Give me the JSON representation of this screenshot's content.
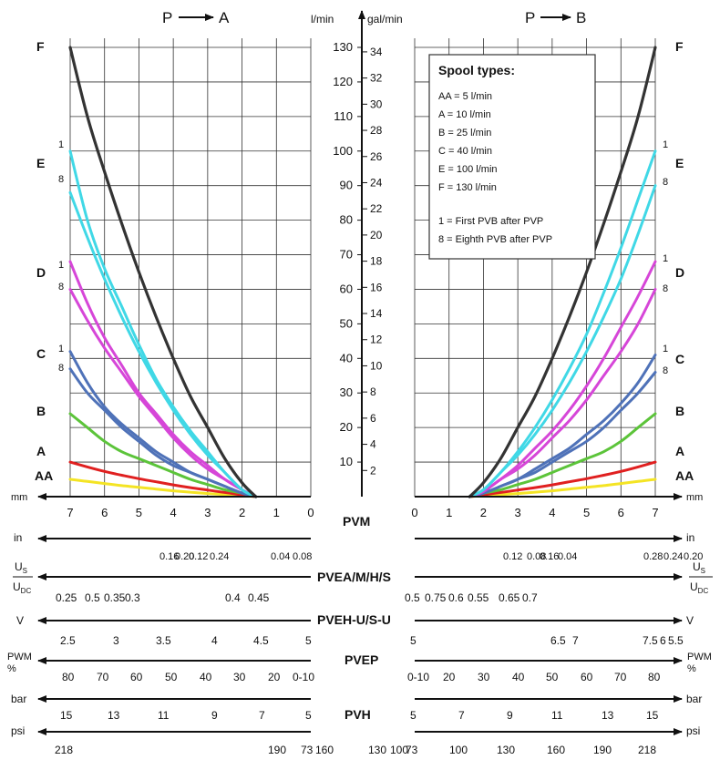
{
  "chart_data": {
    "type": "line",
    "left_panel": {
      "header_from": "P",
      "header_to": "A",
      "x_unit": "mm",
      "x_ticks": [
        "7",
        "6",
        "5",
        "4",
        "3",
        "2",
        "1",
        "0"
      ],
      "series": [
        {
          "name": "F",
          "color": "#333333",
          "x": [
            7.0,
            6.5,
            6.0,
            5.5,
            5.0,
            4.5,
            4.0,
            3.5,
            3.0,
            2.5,
            2.0,
            1.6
          ],
          "y": [
            130,
            110,
            94,
            79,
            65,
            52,
            40,
            29,
            20,
            11,
            4,
            0
          ]
        },
        {
          "name": "E1",
          "color": "#40d8e6",
          "x": [
            7.0,
            6.5,
            6.0,
            5.5,
            5.0,
            4.5,
            4.0,
            3.5,
            3.0,
            2.5,
            2.0,
            1.6
          ],
          "y": [
            100,
            80,
            66,
            55,
            44,
            34,
            26,
            19,
            13,
            7,
            2,
            0
          ]
        },
        {
          "name": "E8",
          "color": "#40d8e6",
          "x": [
            7.0,
            6.5,
            6.0,
            5.5,
            5.0,
            4.5,
            4.0,
            3.5,
            3.0,
            2.5,
            2.0,
            1.6
          ],
          "y": [
            88,
            75,
            63,
            52,
            42,
            33,
            25,
            18,
            12,
            7,
            2,
            0
          ]
        },
        {
          "name": "D1",
          "color": "#d646d8",
          "x": [
            7.0,
            6.5,
            6.0,
            5.5,
            5.0,
            4.5,
            4.0,
            3.5,
            3.0,
            2.5,
            2.0,
            1.6
          ],
          "y": [
            68,
            56,
            46,
            38,
            30,
            24,
            18,
            13,
            9,
            5,
            2,
            0
          ]
        },
        {
          "name": "D8",
          "color": "#d646d8",
          "x": [
            7.0,
            6.5,
            6.0,
            5.5,
            5.0,
            4.5,
            4.0,
            3.5,
            3.0,
            2.5,
            2.0,
            1.6
          ],
          "y": [
            60,
            51,
            43,
            36,
            29,
            23,
            17,
            12,
            8,
            5,
            2,
            0
          ]
        },
        {
          "name": "C1",
          "color": "#4f72b8",
          "x": [
            7.0,
            6.5,
            6.0,
            5.5,
            5.0,
            4.5,
            4.0,
            3.5,
            3.0,
            2.5,
            2.0,
            1.6
          ],
          "y": [
            42,
            33,
            26,
            21,
            17,
            13,
            10,
            7,
            5,
            3,
            1,
            0
          ]
        },
        {
          "name": "C8",
          "color": "#4f72b8",
          "x": [
            7.0,
            6.5,
            6.0,
            5.5,
            5.0,
            4.5,
            4.0,
            3.5,
            3.0,
            2.5,
            2.0,
            1.6
          ],
          "y": [
            37,
            30,
            25,
            20,
            16,
            12,
            9,
            7,
            5,
            3,
            1,
            0
          ]
        },
        {
          "name": "B",
          "color": "#5cc43a",
          "x": [
            7.0,
            6.5,
            6.0,
            5.5,
            5.0,
            4.5,
            4.0,
            3.5,
            3.0,
            2.5,
            2.0,
            1.6
          ],
          "y": [
            24,
            20,
            16,
            13,
            11,
            9,
            7,
            5,
            3.5,
            2,
            1,
            0
          ]
        },
        {
          "name": "A",
          "color": "#e02020",
          "x": [
            7.0,
            6.5,
            6.0,
            5.5,
            5.0,
            4.5,
            4.0,
            3.5,
            3.0,
            2.5,
            2.0,
            1.6
          ],
          "y": [
            10,
            8.6,
            7.3,
            6.2,
            5.2,
            4.3,
            3.4,
            2.6,
            1.9,
            1.2,
            0.5,
            0
          ]
        },
        {
          "name": "AA",
          "color": "#f4e424",
          "x": [
            7.0,
            6.5,
            6.0,
            5.5,
            5.0,
            4.5,
            4.0,
            3.5,
            3.0,
            2.5,
            2.0,
            1.6
          ],
          "y": [
            5,
            4.4,
            3.8,
            3.2,
            2.7,
            2.2,
            1.7,
            1.3,
            0.9,
            0.6,
            0.3,
            0
          ]
        }
      ]
    },
    "right_panel": {
      "header_from": "P",
      "header_to": "B",
      "x_unit": "mm",
      "x_ticks": [
        "0",
        "1",
        "2",
        "3",
        "4",
        "5",
        "6",
        "7"
      ],
      "series": [
        {
          "name": "F",
          "color": "#333333",
          "x": [
            1.6,
            2.0,
            2.5,
            3.0,
            3.5,
            4.0,
            4.5,
            5.0,
            5.5,
            6.0,
            6.5,
            7.0
          ],
          "y": [
            0,
            4,
            11,
            20,
            29,
            40,
            52,
            65,
            79,
            94,
            110,
            130
          ]
        },
        {
          "name": "E1",
          "color": "#40d8e6",
          "x": [
            1.6,
            2.0,
            2.5,
            3.0,
            3.5,
            4.0,
            4.5,
            5.0,
            5.5,
            6.0,
            6.5,
            7.0
          ],
          "y": [
            0,
            2,
            7,
            13,
            20,
            28,
            37,
            47,
            59,
            72,
            86,
            100
          ]
        },
        {
          "name": "E8",
          "color": "#40d8e6",
          "x": [
            1.6,
            2.0,
            2.5,
            3.0,
            3.5,
            4.0,
            4.5,
            5.0,
            5.5,
            6.0,
            6.5,
            7.0
          ],
          "y": [
            0,
            2,
            7,
            12,
            18,
            25,
            33,
            42,
            52,
            63,
            76,
            90
          ]
        },
        {
          "name": "D1",
          "color": "#d646d8",
          "x": [
            1.6,
            2.0,
            2.5,
            3.0,
            3.5,
            4.0,
            4.5,
            5.0,
            5.5,
            6.0,
            6.5,
            7.0
          ],
          "y": [
            0,
            1.5,
            5,
            9,
            14,
            19,
            25,
            32,
            40,
            49,
            58,
            68
          ]
        },
        {
          "name": "D8",
          "color": "#d646d8",
          "x": [
            1.6,
            2.0,
            2.5,
            3.0,
            3.5,
            4.0,
            4.5,
            5.0,
            5.5,
            6.0,
            6.5,
            7.0
          ],
          "y": [
            0,
            1.5,
            5,
            8,
            12,
            17,
            22,
            28,
            35,
            42,
            50,
            60
          ]
        },
        {
          "name": "C1",
          "color": "#4f72b8",
          "x": [
            1.6,
            2.0,
            2.5,
            3.0,
            3.5,
            4.0,
            4.5,
            5.0,
            5.5,
            6.0,
            6.5,
            7.0
          ],
          "y": [
            0,
            1,
            3,
            5,
            8,
            11,
            14,
            18,
            22,
            27,
            33,
            41
          ]
        },
        {
          "name": "C8",
          "color": "#4f72b8",
          "x": [
            1.6,
            2.0,
            2.5,
            3.0,
            3.5,
            4.0,
            4.5,
            5.0,
            5.5,
            6.0,
            6.5,
            7.0
          ],
          "y": [
            0,
            1,
            3,
            5,
            7,
            10,
            13,
            16,
            20,
            25,
            30,
            36
          ]
        },
        {
          "name": "B",
          "color": "#5cc43a",
          "x": [
            1.6,
            2.0,
            2.5,
            3.0,
            3.5,
            4.0,
            4.5,
            5.0,
            5.5,
            6.0,
            6.5,
            7.0
          ],
          "y": [
            0,
            1,
            2,
            3.5,
            5,
            7,
            9,
            11,
            13,
            16,
            20,
            24
          ]
        },
        {
          "name": "A",
          "color": "#e02020",
          "x": [
            1.6,
            2.0,
            2.5,
            3.0,
            3.5,
            4.0,
            4.5,
            5.0,
            5.5,
            6.0,
            6.5,
            7.0
          ],
          "y": [
            0,
            0.5,
            1.2,
            1.9,
            2.6,
            3.4,
            4.3,
            5.2,
            6.2,
            7.3,
            8.6,
            10
          ]
        },
        {
          "name": "AA",
          "color": "#f4e424",
          "x": [
            1.6,
            2.0,
            2.5,
            3.0,
            3.5,
            4.0,
            4.5,
            5.0,
            5.5,
            6.0,
            6.5,
            7.0
          ],
          "y": [
            0,
            0.3,
            0.6,
            0.9,
            1.3,
            1.7,
            2.2,
            2.7,
            3.2,
            3.8,
            4.4,
            5
          ]
        }
      ]
    },
    "y_axis": {
      "unit_left": "l/min",
      "unit_right": "gal/min",
      "ylim": [
        0,
        130
      ],
      "lmin_ticks": [
        "10",
        "20",
        "30",
        "40",
        "50",
        "60",
        "70",
        "80",
        "90",
        "100",
        "110",
        "120",
        "130"
      ],
      "galmin_ticks": [
        "2",
        "4",
        "6",
        "8",
        "10",
        "12",
        "14",
        "16",
        "18",
        "20",
        "22",
        "24",
        "26",
        "28",
        "30",
        "32",
        "34"
      ]
    },
    "curve_labels": {
      "letters": [
        "F",
        "E",
        "D",
        "C",
        "B",
        "A",
        "AA"
      ],
      "first": "1",
      "eighth": "8"
    },
    "legend": {
      "title": "Spool types:",
      "lines": [
        "AA = 5 l/min",
        "A = 10 l/min",
        "B = 25 l/min",
        "C = 40 l/min",
        "E = 100 l/min",
        "F = 130 l/min",
        "",
        "1 = First PVB after PVP",
        "8 = Eighth PVB after PVP"
      ]
    },
    "scales": {
      "pvm": {
        "title": "PVM",
        "unit_mm": "mm",
        "unit_in": "in",
        "in_left": [
          "0.16",
          "0.20",
          "0.12",
          "0.24",
          "0.04",
          "0.08"
        ],
        "in_right": [
          "0.12",
          "0.08",
          "0.16",
          "0.04",
          "0.28",
          "0.24",
          "0.20"
        ]
      },
      "pvea": {
        "title": "PVEA/M/H/S",
        "us": "U",
        "us_sub": "S",
        "udc": "U",
        "udc_sub": "DC",
        "left": [
          "0.25",
          "0.5",
          "0.35",
          "0.3",
          "0.4",
          "0.45"
        ],
        "right": [
          "0.5",
          "0.75",
          "0.6",
          "0.55",
          "0.65",
          "0.7"
        ]
      },
      "pveh": {
        "title": "PVEH-U/S-U",
        "unit": "V",
        "left": [
          "2.5",
          "3",
          "3.5",
          "4",
          "4.5",
          "5"
        ],
        "right": [
          "5",
          "6.5",
          "7",
          "7.5",
          "6",
          "5.5"
        ]
      },
      "pvep": {
        "title": "PVEP",
        "unit_top": "PWM",
        "unit_bottom": "%",
        "left": [
          "80",
          "70",
          "60",
          "50",
          "40",
          "30",
          "20",
          "0-10"
        ],
        "right": [
          "0-10",
          "20",
          "30",
          "40",
          "50",
          "60",
          "70",
          "80"
        ]
      },
      "pvh": {
        "title": "PVH",
        "unit_bar": "bar",
        "unit_psi": "psi",
        "bar_left": [
          "15",
          "13",
          "11",
          "9",
          "7",
          "5"
        ],
        "bar_right": [
          "5",
          "7",
          "9",
          "11",
          "13",
          "15"
        ],
        "psi_left": [
          "218",
          "190",
          "73",
          "160",
          "130",
          "100"
        ],
        "psi_right": [
          "73",
          "100",
          "130",
          "160",
          "190",
          "218"
        ]
      }
    }
  }
}
